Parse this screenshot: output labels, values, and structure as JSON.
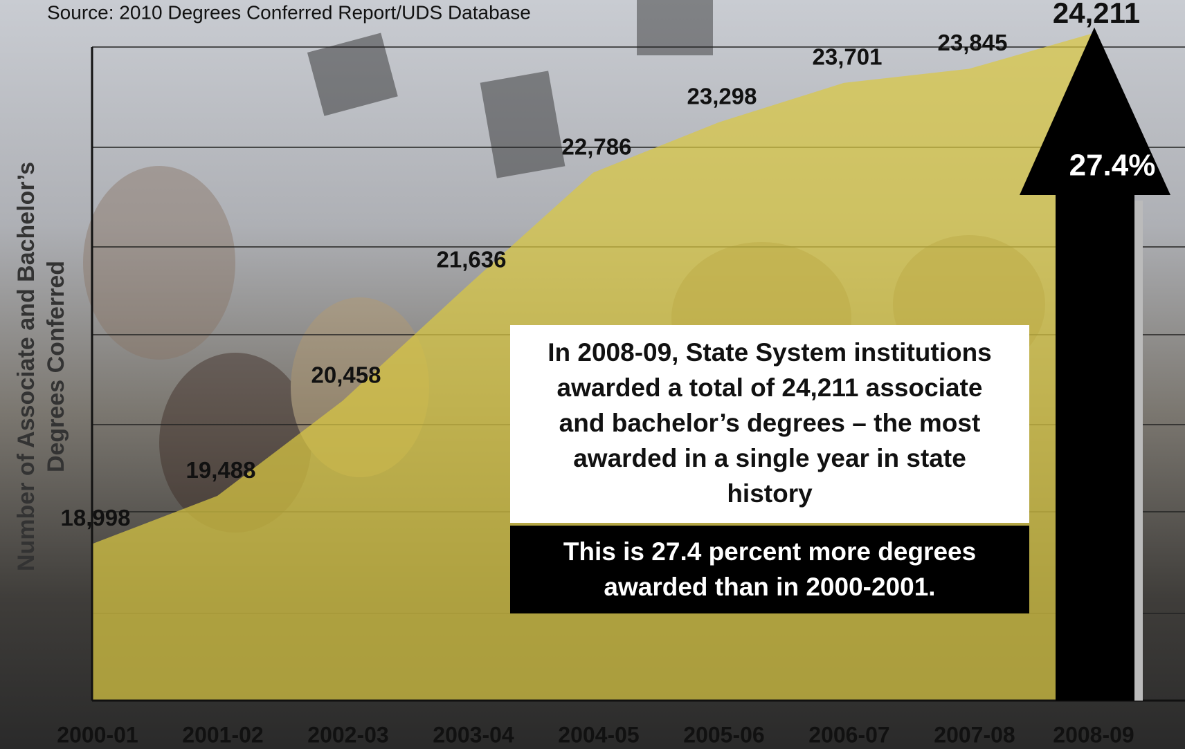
{
  "chart_data": {
    "type": "area",
    "source": "Source: 2010 Degrees Conferred Report/UDS Database",
    "ylabel": [
      "Number of Associate and Bachelor’s",
      "Degrees Conferred"
    ],
    "categories": [
      "2000-01",
      "2001-02",
      "2002-03",
      "2003-04",
      "2004-05",
      "2005-06",
      "2006-07",
      "2007-08",
      "2008-09"
    ],
    "values": [
      18998,
      19488,
      20458,
      21636,
      22786,
      23298,
      23701,
      23845,
      24211
    ],
    "value_labels": [
      "18,998",
      "19,488",
      "20,458",
      "21,636",
      "22,786",
      "23,298",
      "23,701",
      "23,845",
      "24,211"
    ],
    "color": "#d9c742",
    "ylim": [
      17400,
      24300
    ],
    "arrow_label": "27.4%",
    "annotation": "In 2008-09, State System institutions awarded a total of 24,211 associate and bachelor’s degrees – the most awarded in a single year in state history",
    "annotation2": "This is 27.4 percent more degrees awarded than in 2000-2001."
  }
}
